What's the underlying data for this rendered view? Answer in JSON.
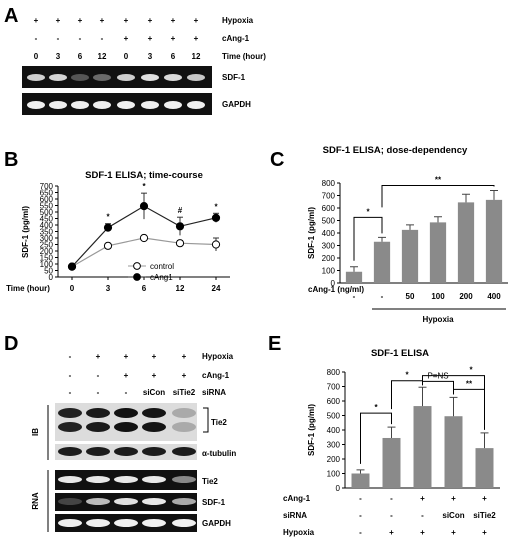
{
  "panels": {
    "A": {
      "letter": "A",
      "row_labels": [
        "Hypoxia",
        "cAng-1",
        "Time (hour)"
      ],
      "hypoxia_row": [
        "+",
        "+",
        "+",
        "+",
        "+",
        "+",
        "+",
        "+"
      ],
      "cang_row": [
        "-",
        "-",
        "-",
        "-",
        "+",
        "+",
        "+",
        "+"
      ],
      "time_row": [
        "0",
        "3",
        "6",
        "12",
        "0",
        "3",
        "6",
        "12"
      ],
      "gel_labels": [
        "SDF-1",
        "GAPDH"
      ]
    },
    "B": {
      "letter": "B"
    },
    "C": {
      "letter": "C"
    },
    "D": {
      "letter": "D",
      "row_labels": [
        "Hypoxia",
        "cAng-1",
        "siRNA"
      ],
      "hypoxia_row": [
        "-",
        "+",
        "+",
        "+",
        "+"
      ],
      "cang_row": [
        "-",
        "-",
        "+",
        "+",
        "+"
      ],
      "sirna_row": [
        "-",
        "-",
        "-",
        "siCon",
        "siTie2"
      ],
      "ib_label": "IB",
      "rna_label": "RNA",
      "ib_bands": [
        "Tie2",
        "α-tubulin"
      ],
      "rna_bands": [
        "Tie2",
        "SDF-1",
        "GAPDH"
      ]
    },
    "E": {
      "letter": "E"
    }
  },
  "chart_data": [
    {
      "id": "B",
      "type": "line",
      "title": "SDF-1 ELISA; time-course",
      "xlabel": "Time (hour)",
      "ylabel": "SDF-1 (pg/ml)",
      "x": [
        "0",
        "3",
        "6",
        "12",
        "24"
      ],
      "ylim": [
        0,
        700
      ],
      "yticks": [
        0,
        50,
        100,
        150,
        200,
        250,
        300,
        350,
        400,
        450,
        500,
        550,
        600,
        650,
        700
      ],
      "series": [
        {
          "name": "control",
          "values": [
            80,
            240,
            300,
            260,
            250
          ],
          "errors": [
            0,
            15,
            20,
            20,
            50
          ],
          "marker": "open"
        },
        {
          "name": "cAng1",
          "values": [
            80,
            380,
            545,
            390,
            455
          ],
          "errors": [
            0,
            30,
            100,
            70,
            35
          ],
          "marker": "filled"
        }
      ],
      "annotations": [
        "*",
        "*",
        "#",
        "*"
      ]
    },
    {
      "id": "C",
      "type": "bar",
      "title": "SDF-1 ELISA; dose-dependency",
      "ylabel": "SDF-1 (pg/ml)",
      "categories": [
        "-",
        "-",
        "50",
        "100",
        "200",
        "400"
      ],
      "category_row_label": "cAng-1 (ng/ml)",
      "group_label": "Hypoxia",
      "values": [
        90,
        330,
        425,
        485,
        645,
        665
      ],
      "errors": [
        40,
        35,
        40,
        45,
        65,
        75
      ],
      "ylim": [
        0,
        800
      ],
      "yticks": [
        0,
        100,
        200,
        300,
        400,
        500,
        600,
        700,
        800
      ],
      "annotations": [
        "*",
        "**"
      ]
    },
    {
      "id": "E",
      "type": "bar",
      "title": "SDF-1 ELISA",
      "ylabel": "SDF-1 (pg/ml)",
      "row_labels": [
        "cAng-1",
        "siRNA",
        "Hypoxia"
      ],
      "cang_row": [
        "-",
        "-",
        "+",
        "+",
        "+"
      ],
      "sirna_row": [
        "-",
        "-",
        "-",
        "siCon",
        "siTie2"
      ],
      "hypoxia_row": [
        "-",
        "+",
        "+",
        "+",
        "+"
      ],
      "values": [
        100,
        345,
        565,
        495,
        275
      ],
      "errors": [
        25,
        75,
        130,
        130,
        105
      ],
      "ylim": [
        0,
        800
      ],
      "yticks": [
        0,
        100,
        200,
        300,
        400,
        500,
        600,
        700,
        800
      ],
      "annotations": [
        "*",
        "*",
        "P=NS",
        "*",
        "**"
      ]
    }
  ]
}
